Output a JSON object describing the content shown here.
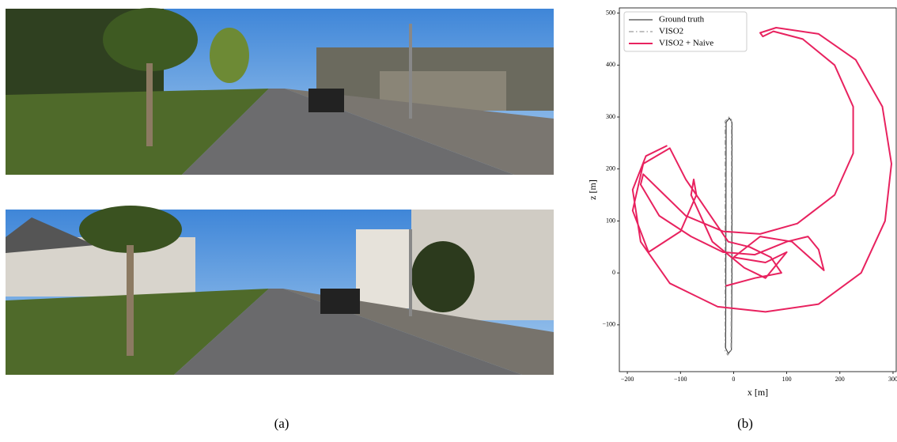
{
  "captions": [
    "(a)",
    "(b)"
  ],
  "chart_data": {
    "type": "line",
    "xlabel": "x [m]",
    "ylabel": "z [m]",
    "xlim": [
      -215,
      306
    ],
    "ylim": [
      -190,
      510
    ],
    "xticks": [
      {
        "value": -200,
        "label": "−200"
      },
      {
        "value": -100,
        "label": "−100"
      },
      0,
      100,
      200,
      300
    ],
    "yticks": [
      {
        "value": -100,
        "label": "−100"
      },
      0,
      100,
      200,
      300,
      400,
      500
    ],
    "legend": "upper left",
    "series": [
      {
        "name": "Ground truth",
        "color": "#444444",
        "dash": "solid",
        "x": [
          -3,
          -3,
          -8,
          -14,
          -15,
          -10,
          -4,
          -3
        ],
        "values": [
          0,
          290,
          298,
          290,
          -145,
          -155,
          -148,
          0
        ]
      },
      {
        "name": "VISO2",
        "color": "#9a9a9a",
        "dash": "dashdot",
        "x": [
          -4,
          -4,
          -9,
          -16,
          -16,
          -11,
          -5,
          -4
        ],
        "values": [
          0,
          295,
          300,
          292,
          -150,
          -158,
          -150,
          0
        ]
      },
      {
        "name": "VISO2 + Naive",
        "color": "#e8225f",
        "dash": "solid",
        "x": [
          -125,
          -165,
          -190,
          -175,
          -120,
          -30,
          60,
          160,
          240,
          285,
          297,
          280,
          230,
          160,
          80,
          50,
          55,
          75,
          130,
          190,
          225,
          225,
          190,
          120,
          50,
          -20,
          -90,
          -130,
          -170,
          -175,
          -140,
          -80,
          -20,
          40,
          100,
          140,
          160,
          170,
          110,
          50,
          0,
          60,
          100,
          60,
          20,
          -40,
          -80,
          -75,
          -70,
          -100,
          -160,
          -190,
          -170,
          -120,
          -90,
          -50,
          -10,
          30,
          70,
          90,
          40,
          -15
        ],
        "values": [
          245,
          225,
          160,
          60,
          -20,
          -65,
          -75,
          -60,
          0,
          100,
          210,
          320,
          410,
          460,
          472,
          462,
          455,
          465,
          450,
          400,
          320,
          230,
          150,
          95,
          75,
          80,
          110,
          150,
          190,
          170,
          110,
          70,
          40,
          35,
          60,
          70,
          45,
          5,
          60,
          70,
          30,
          20,
          40,
          -10,
          10,
          60,
          150,
          180,
          150,
          80,
          40,
          120,
          210,
          240,
          180,
          120,
          60,
          50,
          30,
          0,
          -10,
          -25
        ]
      }
    ]
  }
}
